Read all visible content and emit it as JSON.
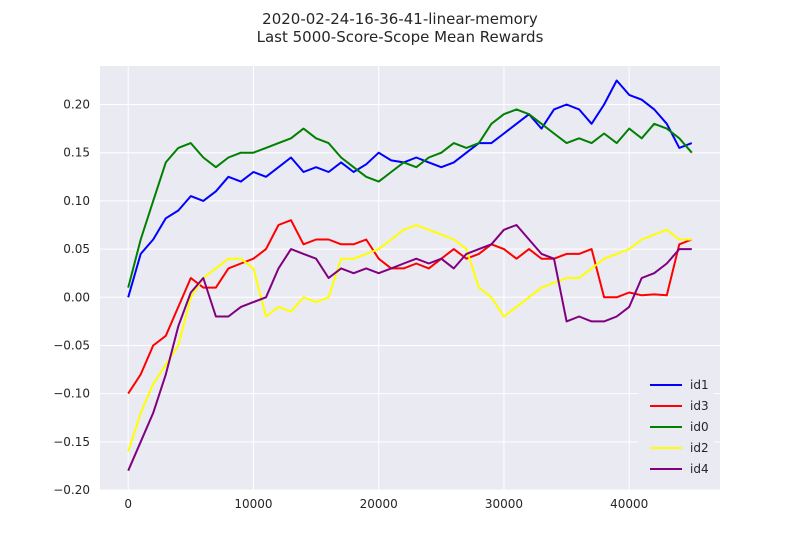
{
  "chart_data": {
    "type": "line",
    "title": "2020-02-24-16-36-41-linear-memory",
    "subtitle": "Last 5000-Score-Scope Mean Rewards",
    "xlabel": "",
    "ylabel": "",
    "xlim": [
      -2250,
      47250
    ],
    "ylim": [
      -0.2,
      0.24
    ],
    "xticks": [
      0,
      10000,
      20000,
      30000,
      40000
    ],
    "xtick_labels": [
      "0",
      "10000",
      "20000",
      "30000",
      "40000"
    ],
    "yticks": [
      -0.2,
      -0.15,
      -0.1,
      -0.05,
      0.0,
      0.05,
      0.1,
      0.15,
      0.2
    ],
    "ytick_labels": [
      "−0.20",
      "−0.15",
      "−0.10",
      "−0.05",
      "0.00",
      "0.05",
      "0.10",
      "0.15",
      "0.20"
    ],
    "grid": true,
    "legend_position": "lower-right",
    "background_color": "#EAEAF2",
    "x": [
      0,
      1000,
      2000,
      3000,
      4000,
      5000,
      6000,
      7000,
      8000,
      9000,
      10000,
      11000,
      12000,
      13000,
      14000,
      15000,
      16000,
      17000,
      18000,
      19000,
      20000,
      21000,
      22000,
      23000,
      24000,
      25000,
      26000,
      27000,
      28000,
      29000,
      30000,
      31000,
      32000,
      33000,
      34000,
      35000,
      36000,
      37000,
      38000,
      39000,
      40000,
      41000,
      42000,
      43000,
      44000,
      45000
    ],
    "series": [
      {
        "name": "id1",
        "color": "#0000ff",
        "values": [
          0.0,
          0.045,
          0.06,
          0.082,
          0.09,
          0.105,
          0.1,
          0.11,
          0.125,
          0.12,
          0.13,
          0.125,
          0.135,
          0.145,
          0.13,
          0.135,
          0.13,
          0.14,
          0.13,
          0.138,
          0.15,
          0.142,
          0.14,
          0.145,
          0.14,
          0.135,
          0.14,
          0.15,
          0.16,
          0.16,
          0.17,
          0.18,
          0.19,
          0.175,
          0.195,
          0.2,
          0.195,
          0.18,
          0.2,
          0.225,
          0.21,
          0.205,
          0.195,
          0.18,
          0.155,
          0.16
        ]
      },
      {
        "name": "id3",
        "color": "#ff0000",
        "values": [
          -0.1,
          -0.08,
          -0.05,
          -0.04,
          -0.01,
          0.02,
          0.01,
          0.01,
          0.03,
          0.035,
          0.04,
          0.05,
          0.075,
          0.08,
          0.055,
          0.06,
          0.06,
          0.055,
          0.055,
          0.06,
          0.04,
          0.03,
          0.03,
          0.035,
          0.03,
          0.04,
          0.05,
          0.04,
          0.045,
          0.055,
          0.05,
          0.04,
          0.05,
          0.04,
          0.04,
          0.045,
          0.045,
          0.05,
          0.0,
          0.0,
          0.005,
          0.002,
          0.003,
          0.002,
          0.055,
          0.06
        ]
      },
      {
        "name": "id0",
        "color": "#008000",
        "values": [
          0.01,
          0.06,
          0.1,
          0.14,
          0.155,
          0.16,
          0.145,
          0.135,
          0.145,
          0.15,
          0.15,
          0.155,
          0.16,
          0.165,
          0.175,
          0.165,
          0.16,
          0.145,
          0.135,
          0.125,
          0.12,
          0.13,
          0.14,
          0.135,
          0.145,
          0.15,
          0.16,
          0.155,
          0.16,
          0.18,
          0.19,
          0.195,
          0.19,
          0.18,
          0.17,
          0.16,
          0.165,
          0.16,
          0.17,
          0.16,
          0.175,
          0.165,
          0.18,
          0.175,
          0.165,
          0.15
        ]
      },
      {
        "name": "id2",
        "color": "#ffff00",
        "values": [
          -0.16,
          -0.12,
          -0.09,
          -0.07,
          -0.05,
          0.0,
          0.02,
          0.03,
          0.04,
          0.04,
          0.03,
          -0.02,
          -0.01,
          -0.015,
          0.0,
          -0.005,
          0.0,
          0.04,
          0.04,
          0.045,
          0.05,
          0.06,
          0.07,
          0.075,
          0.07,
          0.065,
          0.06,
          0.05,
          0.01,
          0.0,
          -0.02,
          -0.01,
          0.0,
          0.01,
          0.015,
          0.02,
          0.02,
          0.03,
          0.04,
          0.045,
          0.05,
          0.06,
          0.065,
          0.07,
          0.06,
          0.06
        ]
      },
      {
        "name": "id4",
        "color": "#800080",
        "values": [
          -0.18,
          -0.15,
          -0.12,
          -0.08,
          -0.03,
          0.005,
          0.02,
          -0.02,
          -0.02,
          -0.01,
          -0.005,
          0.0,
          0.03,
          0.05,
          0.045,
          0.04,
          0.02,
          0.03,
          0.025,
          0.03,
          0.025,
          0.03,
          0.035,
          0.04,
          0.035,
          0.04,
          0.03,
          0.045,
          0.05,
          0.055,
          0.07,
          0.075,
          0.06,
          0.045,
          0.04,
          -0.025,
          -0.02,
          -0.025,
          -0.025,
          -0.02,
          -0.01,
          0.02,
          0.025,
          0.035,
          0.05,
          0.05
        ]
      }
    ]
  }
}
